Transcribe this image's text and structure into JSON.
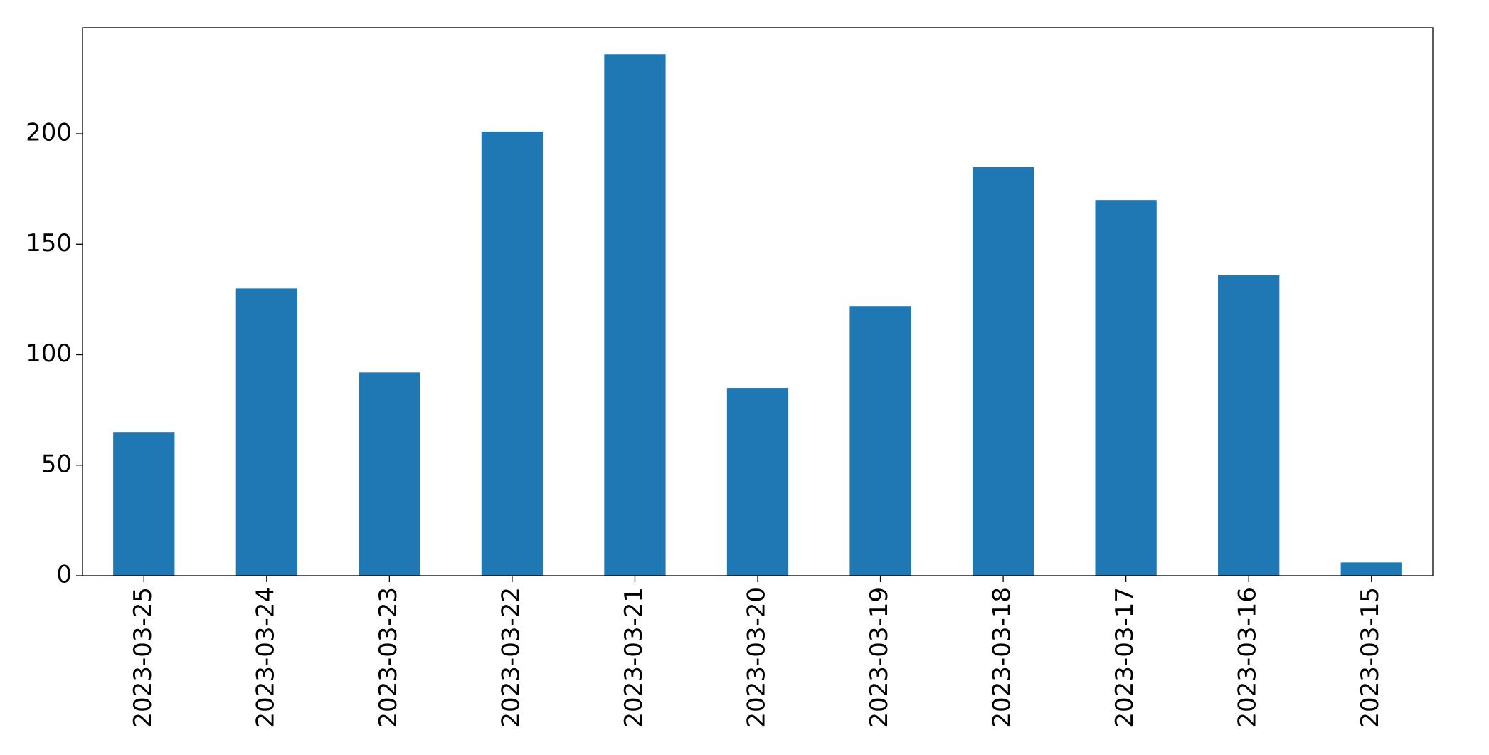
{
  "chart_data": {
    "type": "bar",
    "categories": [
      "2023-03-25",
      "2023-03-24",
      "2023-03-23",
      "2023-03-22",
      "2023-03-21",
      "2023-03-20",
      "2023-03-19",
      "2023-03-18",
      "2023-03-17",
      "2023-03-16",
      "2023-03-15"
    ],
    "values": [
      65,
      130,
      92,
      201,
      236,
      85,
      122,
      185,
      170,
      136,
      6
    ],
    "color": "#1f77b4",
    "ylim": [
      0,
      248
    ],
    "yticks": [
      0,
      50,
      100,
      150,
      200
    ],
    "grid": false
  }
}
